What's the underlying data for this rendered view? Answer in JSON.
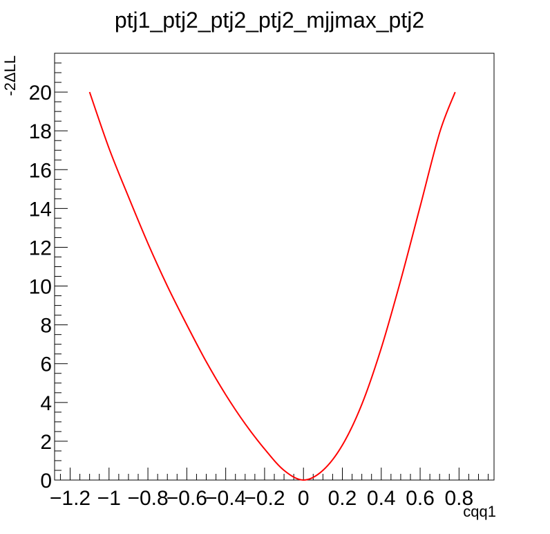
{
  "chart_data": {
    "type": "line",
    "title": "ptj1_ptj2_ptj2_ptj2_mjjmax_ptj2",
    "xlabel": "cqq1",
    "ylabel": "-2ΔLL",
    "xlim": [
      -1.28,
      0.98
    ],
    "ylim": [
      0,
      22
    ],
    "x_tick_labels": [
      "−1.2",
      "−1",
      "−0.8",
      "−0.6",
      "−0.4",
      "−0.2",
      "0",
      "0.2",
      "0.4",
      "0.6",
      "0.8"
    ],
    "x_tick_values": [
      -1.2,
      -1.0,
      -0.8,
      -0.6,
      -0.4,
      -0.2,
      0,
      0.2,
      0.4,
      0.6,
      0.8
    ],
    "y_tick_labels": [
      "0",
      "2",
      "4",
      "6",
      "8",
      "10",
      "12",
      "14",
      "16",
      "18",
      "20"
    ],
    "y_tick_values": [
      0,
      2,
      4,
      6,
      8,
      10,
      12,
      14,
      16,
      18,
      20
    ],
    "grid": false,
    "series": [
      {
        "color": "#ff0000",
        "x": [
          -1.1,
          -1.0,
          -0.9,
          -0.8,
          -0.7,
          -0.6,
          -0.5,
          -0.4,
          -0.3,
          -0.2,
          -0.1,
          0.0,
          0.1,
          0.2,
          0.3,
          0.4,
          0.5,
          0.6,
          0.7,
          0.78
        ],
        "y": [
          20.0,
          17.1,
          14.6,
          12.2,
          10.0,
          8.0,
          6.1,
          4.4,
          2.9,
          1.6,
          0.5,
          0.0,
          0.5,
          1.8,
          3.9,
          6.8,
          10.3,
          14.1,
          17.9,
          20.0
        ]
      }
    ]
  }
}
